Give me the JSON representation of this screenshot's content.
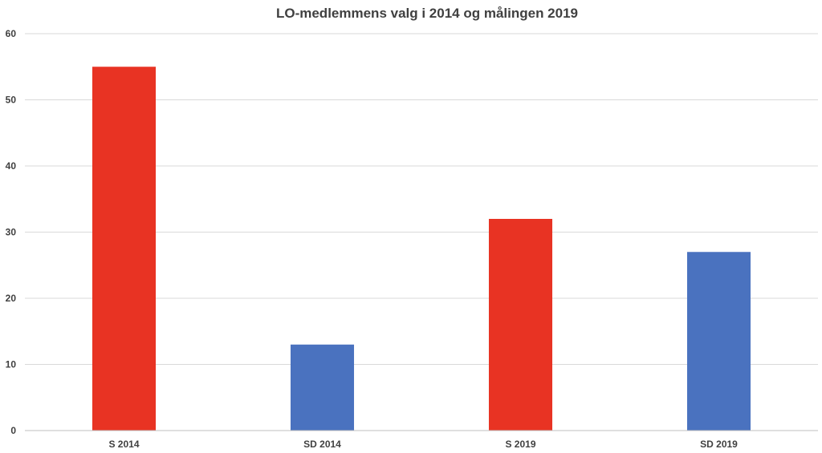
{
  "chart_data": {
    "type": "bar",
    "title": "LO-medlemmens valg i 2014 og målingen 2019",
    "xlabel": "",
    "ylabel": "",
    "categories": [
      "S 2014",
      "SD 2014",
      "S 2019",
      "SD 2019"
    ],
    "values": [
      55,
      13,
      32,
      27
    ],
    "bar_colors": [
      "#e83323",
      "#4a72bf",
      "#e83323",
      "#4a72bf"
    ],
    "ylim": [
      0,
      60
    ],
    "yticks": [
      "0",
      "10",
      "20",
      "30",
      "40",
      "50",
      "60"
    ],
    "grid": true,
    "legend": "none"
  }
}
